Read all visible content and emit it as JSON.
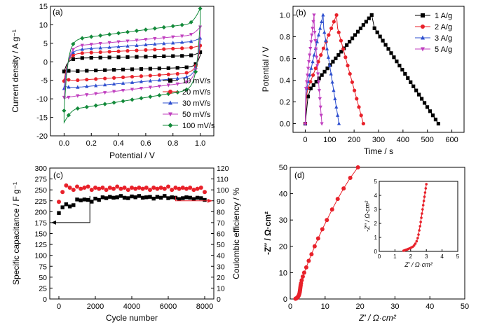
{
  "chart_data": [
    {
      "panel": "(a)",
      "type": "line",
      "xlabel": "Potential / V",
      "ylabel": "Current density / A g⁻¹",
      "xlim": [
        -0.1,
        1.1
      ],
      "ylim": [
        -20,
        15
      ],
      "xticks": [
        "0.0",
        "0.2",
        "0.4",
        "0.6",
        "0.8",
        "1.0"
      ],
      "yticks": [
        "-20",
        "-15",
        "-10",
        "-5",
        "0",
        "5",
        "10",
        "15"
      ],
      "legend_position": "bottom-right",
      "series": [
        {
          "name": "10 mV/s",
          "color": "#000000",
          "marker": "square",
          "upper": 1.7,
          "lower": -2.6,
          "edge_top": 2.6,
          "edge_bot": -2.3
        },
        {
          "name": "20 mV/s",
          "color": "#e8212a",
          "marker": "circle",
          "upper": 3.9,
          "lower": -5.2,
          "edge_top": 4.4,
          "edge_bot": -4.6
        },
        {
          "name": "30 mV/s",
          "color": "#2e4fcf",
          "marker": "triangle-up",
          "upper": 5.6,
          "lower": -7.2,
          "edge_top": 6.4,
          "edge_bot": -6.6
        },
        {
          "name": "50 mV/s",
          "color": "#c03fbf",
          "marker": "triangle-down",
          "upper": 7.4,
          "lower": -9.6,
          "edge_top": 9.4,
          "edge_bot": -9.9
        },
        {
          "name": "100 mV/s",
          "color": "#138a3a",
          "marker": "diamond",
          "upper": 10.6,
          "lower": -13.2,
          "edge_top": 14.4,
          "edge_bot": -16.4
        }
      ]
    },
    {
      "panel": "(b)",
      "type": "line",
      "xlabel": "Time / s",
      "ylabel": "Potential / V",
      "xlim": [
        -50,
        650
      ],
      "ylim": [
        -0.08,
        1.08
      ],
      "xticks": [
        "0",
        "100",
        "200",
        "300",
        "400",
        "500",
        "600"
      ],
      "yticks": [
        "0.0",
        "0.2",
        "0.4",
        "0.6",
        "0.8",
        "1.0"
      ],
      "legend_position": "top-right",
      "series": [
        {
          "name": "1 A/g",
          "color": "#000000",
          "marker": "square",
          "charge_time": 272,
          "end_time": 545
        },
        {
          "name": "2 A/g",
          "color": "#e8212a",
          "marker": "circle",
          "charge_time": 128,
          "end_time": 238
        },
        {
          "name": "3 A/g",
          "color": "#2e4fcf",
          "marker": "triangle-up",
          "charge_time": 73,
          "end_time": 138
        },
        {
          "name": "5 A/g",
          "color": "#c03fbf",
          "marker": "triangle-down",
          "charge_time": 36,
          "end_time": 68
        }
      ]
    },
    {
      "panel": "(c)",
      "type": "scatter",
      "xlabel": "Cycle number",
      "ylabel_left": "Specific capacitance / F g⁻¹",
      "ylabel_right": "Coulombic efficiency / %",
      "xlim": [
        -500,
        8500
      ],
      "ylim_left": [
        0,
        300
      ],
      "ylim_right": [
        0,
        120
      ],
      "xticks": [
        "0",
        "2000",
        "4000",
        "6000",
        "8000"
      ],
      "yticks_left": [
        "0",
        "25",
        "50",
        "75",
        "100",
        "125",
        "150",
        "175",
        "200",
        "225",
        "250",
        "275",
        "300"
      ],
      "yticks_right": [
        "0",
        "10",
        "20",
        "30",
        "40",
        "50",
        "60",
        "70",
        "80",
        "90",
        "100",
        "110",
        "120"
      ],
      "capacitance": {
        "color": "#000000",
        "x": [
          0,
          200,
          400,
          600,
          800,
          1000,
          1200,
          1400,
          1600,
          1800,
          2000,
          2200,
          2400,
          2600,
          2800,
          3000,
          3200,
          3400,
          3600,
          3800,
          4000,
          4200,
          4400,
          4600,
          4800,
          5000,
          5200,
          5400,
          5600,
          5800,
          6000,
          6200,
          6400,
          6600,
          6800,
          7000,
          7200,
          7400,
          7600,
          7800,
          8000
        ],
        "y": [
          197,
          210,
          217,
          212,
          215,
          228,
          226,
          228,
          227,
          223,
          230,
          227,
          233,
          231,
          234,
          232,
          233,
          236,
          232,
          231,
          235,
          233,
          236,
          232,
          233,
          234,
          230,
          234,
          232,
          236,
          231,
          233,
          232,
          229,
          231,
          233,
          232,
          229,
          232,
          231,
          227
        ]
      },
      "efficiency": {
        "color": "#e8212a",
        "x": [
          0,
          200,
          400,
          600,
          800,
          1000,
          1200,
          1400,
          1600,
          1800,
          2000,
          2200,
          2400,
          2600,
          2800,
          3000,
          3200,
          3400,
          3600,
          3800,
          4000,
          4200,
          4400,
          4600,
          4800,
          5000,
          5200,
          5400,
          5600,
          5800,
          6000,
          6200,
          6400,
          6600,
          6800,
          7000,
          7200,
          7400,
          7600,
          7800,
          8000
        ],
        "y": [
          89,
          98,
          104,
          102,
          100,
          103,
          101,
          102,
          103,
          100,
          102,
          101,
          102,
          100,
          102,
          101,
          103,
          101,
          102,
          100,
          102,
          101,
          102,
          101,
          102,
          100,
          102,
          101,
          102,
          101,
          103,
          100,
          102,
          101,
          102,
          101,
          102,
          100,
          101,
          102,
          98
        ]
      }
    },
    {
      "panel": "(d)",
      "type": "scatter",
      "xlabel": "Z′ / Ω·cm²",
      "ylabel": "-Z″ / Ω·cm²",
      "xlim": [
        0,
        50
      ],
      "ylim": [
        0,
        50
      ],
      "xticks": [
        "0",
        "10",
        "20",
        "30",
        "40",
        "50"
      ],
      "yticks": [
        "0",
        "10",
        "20",
        "30",
        "40",
        "50"
      ],
      "color": "#e8212a",
      "x": [
        1.5,
        1.6,
        1.7,
        1.8,
        1.9,
        2.0,
        2.1,
        2.2,
        2.3,
        2.4,
        2.5,
        2.6,
        2.7,
        2.75,
        2.8,
        2.85,
        2.9,
        2.95,
        3.0,
        3.1,
        3.3,
        3.6,
        4.0,
        4.6,
        5.3,
        6.1,
        7.0,
        8.0,
        9.2,
        10.5,
        12.0,
        13.6,
        15.3,
        17.2,
        19.4
      ],
      "y": [
        0.1,
        0.15,
        0.2,
        0.3,
        0.4,
        0.5,
        0.6,
        0.8,
        1.0,
        1.2,
        1.5,
        1.9,
        2.4,
        2.8,
        3.3,
        3.8,
        4.3,
        4.8,
        5.3,
        6.0,
        7.1,
        8.5,
        10.0,
        12.0,
        14.5,
        17.0,
        20.0,
        23.0,
        26.5,
        30.0,
        34.0,
        38.0,
        42.0,
        46.0,
        50.0
      ],
      "inset": {
        "xlabel": "Z′ / Ω·cm²",
        "ylabel": "-Z″ / Ω·cm²",
        "xlim": [
          0,
          5
        ],
        "ylim": [
          0,
          5
        ],
        "xticks": [
          "0",
          "1",
          "2",
          "3",
          "4",
          "5"
        ],
        "yticks": [
          "0",
          "1",
          "2",
          "3",
          "4",
          "5"
        ],
        "x": [
          1.55,
          1.62,
          1.7,
          1.78,
          1.86,
          1.95,
          2.04,
          2.13,
          2.22,
          2.3,
          2.38,
          2.45,
          2.5,
          2.55,
          2.6,
          2.64,
          2.68,
          2.72,
          2.76,
          2.8,
          2.84,
          2.88,
          2.92,
          2.96,
          3.0
        ],
        "y": [
          0.05,
          0.08,
          0.11,
          0.14,
          0.18,
          0.22,
          0.27,
          0.33,
          0.42,
          0.55,
          0.72,
          0.95,
          1.2,
          1.5,
          1.8,
          2.1,
          2.4,
          2.7,
          3.0,
          3.3,
          3.6,
          3.9,
          4.2,
          4.5,
          4.8
        ]
      }
    }
  ]
}
